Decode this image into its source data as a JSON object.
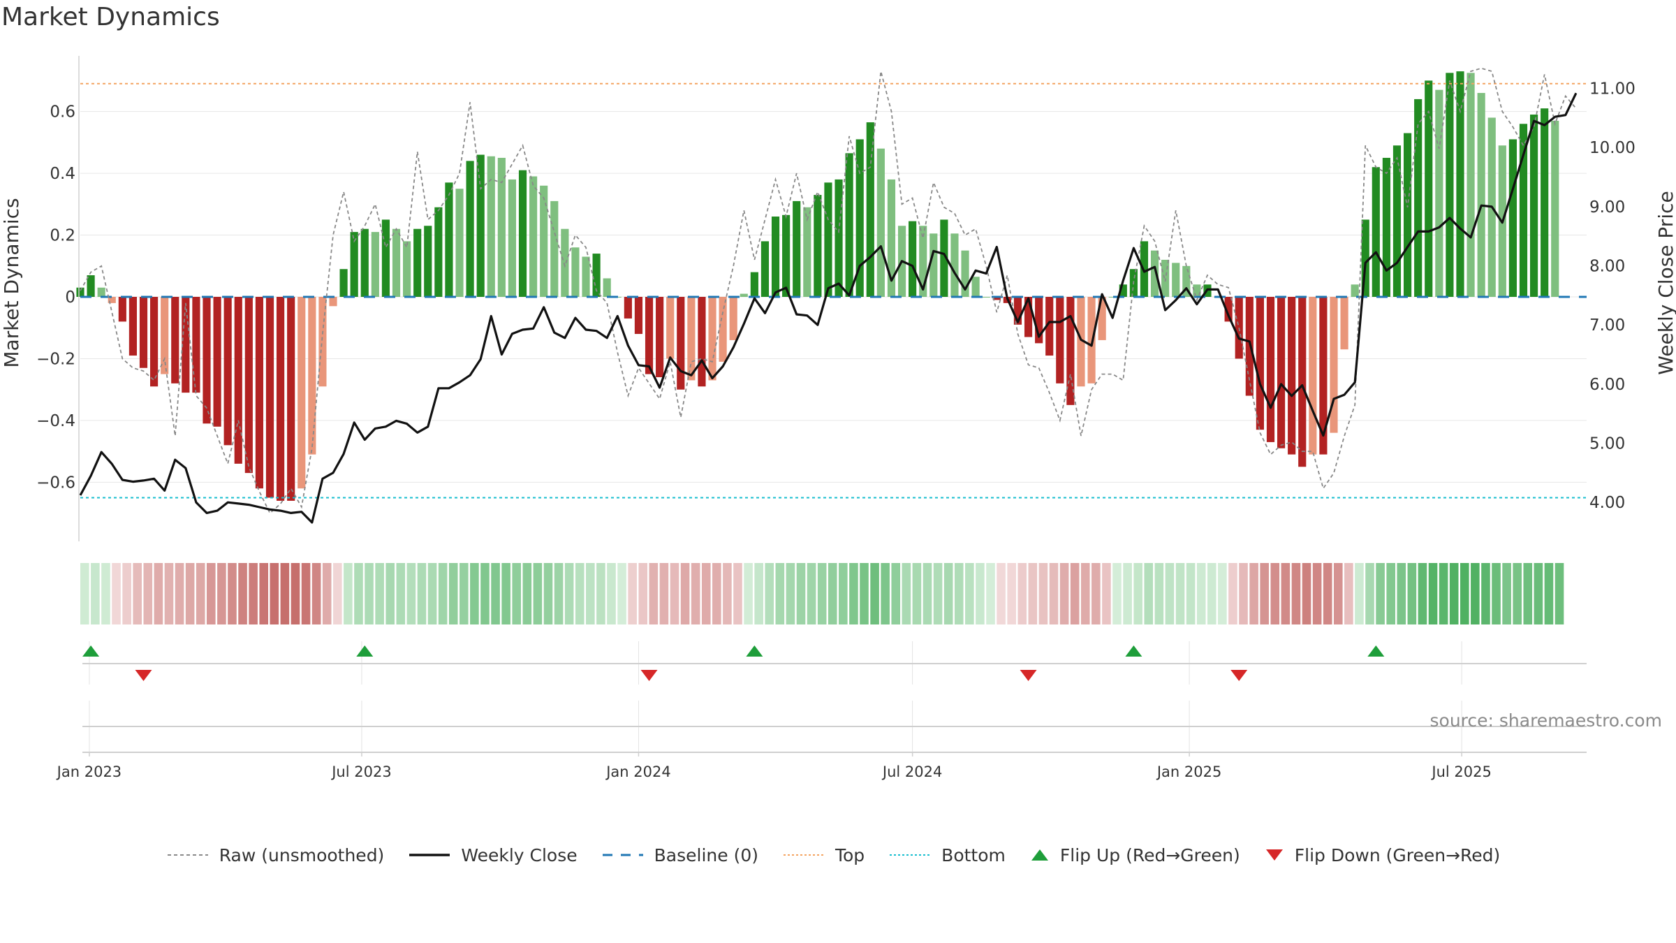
{
  "title": "Market Dynamics",
  "watermark": "source: sharemaestro.com",
  "legend": [
    {
      "label": "Raw (unsmoothed)",
      "kind": "dash-gray",
      "icon": "dashed-line"
    },
    {
      "label": "Weekly Close",
      "kind": "solid-black",
      "icon": "solid-line"
    },
    {
      "label": "Baseline (0)",
      "kind": "dash-blue",
      "icon": "long-dashed-line"
    },
    {
      "label": "Top",
      "kind": "dot-orange",
      "icon": "dotted-line"
    },
    {
      "label": "Bottom",
      "kind": "dot-cyan",
      "icon": "dotted-line"
    },
    {
      "label": "Flip Up (Red→Green)",
      "kind": "tri-up",
      "icon": "triangle-up-icon"
    },
    {
      "label": "Flip Down (Green→Red)",
      "kind": "tri-down",
      "icon": "triangle-down-icon"
    }
  ],
  "colors": {
    "green_strong": "#228B22",
    "green_light": "#7FBF7F",
    "red_strong": "#B22222",
    "red_light": "#E9967A",
    "weekly_close": "#111111",
    "raw": "#888888",
    "baseline": "#1F77B4",
    "top": "#F4A460",
    "bottom": "#17BECF",
    "flip_up": "#1E9E3A",
    "flip_down": "#D62728"
  },
  "chart_data": {
    "type": "bar",
    "title": "Market Dynamics",
    "ylabel": "Market Dynamics",
    "y2label": "Weekly Close Price",
    "ylim": [
      -0.78,
      0.78
    ],
    "y2lim": [
      3.4,
      11.55
    ],
    "yticks": [
      -0.6,
      -0.4,
      -0.2,
      0,
      0.2,
      0.4,
      0.6
    ],
    "ytick_labels": [
      "−0.6",
      "−0.4",
      "−0.2",
      "0",
      "0.2",
      "0.4",
      "0.6"
    ],
    "y2ticks": [
      4,
      5,
      6,
      7,
      8,
      9,
      10,
      11
    ],
    "y2tick_labels": [
      "4.00",
      "5.00",
      "6.00",
      "7.00",
      "8.00",
      "9.00",
      "10.00",
      "11.00"
    ],
    "x_start": "2022-12-26",
    "x_end": "2025-09-22",
    "x_ticks": [
      {
        "date": "2023-01-01",
        "label": "Jan 2023"
      },
      {
        "date": "2023-07-01",
        "label": "Jul 2023"
      },
      {
        "date": "2024-01-01",
        "label": "Jan 2024"
      },
      {
        "date": "2024-07-01",
        "label": "Jul 2024"
      },
      {
        "date": "2025-01-01",
        "label": "Jan 2025"
      },
      {
        "date": "2025-07-01",
        "label": "Jul 2025"
      }
    ],
    "top_level": 0.69,
    "bottom_level": -0.65,
    "baseline": 0,
    "grid": true,
    "legend_position": "bottom",
    "start_date": "2022-12-26",
    "week_step_days": 7,
    "momentum": [
      0.03,
      0.07,
      0.03,
      -0.02,
      -0.08,
      -0.19,
      -0.23,
      -0.29,
      -0.25,
      -0.28,
      -0.31,
      -0.31,
      -0.41,
      -0.42,
      -0.48,
      -0.54,
      -0.57,
      -0.62,
      -0.65,
      -0.66,
      -0.66,
      -0.62,
      -0.51,
      -0.29,
      -0.03,
      0.09,
      0.21,
      0.22,
      0.21,
      0.25,
      0.22,
      0.18,
      0.22,
      0.23,
      0.29,
      0.37,
      0.35,
      0.44,
      0.46,
      0.455,
      0.45,
      0.38,
      0.41,
      0.39,
      0.36,
      0.31,
      0.22,
      0.16,
      0.13,
      0.14,
      0.06,
      0.0,
      -0.07,
      -0.12,
      -0.25,
      -0.26,
      -0.2,
      -0.3,
      -0.27,
      -0.29,
      -0.27,
      -0.21,
      -0.14,
      0.01,
      0.08,
      0.18,
      0.26,
      0.265,
      0.31,
      0.29,
      0.33,
      0.37,
      0.38,
      0.465,
      0.51,
      0.565,
      0.48,
      0.38,
      0.23,
      0.245,
      0.23,
      0.205,
      0.25,
      0.205,
      0.15,
      0.065,
      0.0,
      -0.01,
      -0.02,
      -0.09,
      -0.13,
      -0.15,
      -0.19,
      -0.28,
      -0.35,
      -0.29,
      -0.28,
      -0.14,
      0.0,
      0.04,
      0.09,
      0.18,
      0.15,
      0.12,
      0.11,
      0.1,
      0.04,
      0.04,
      0.0,
      -0.08,
      -0.2,
      -0.32,
      -0.43,
      -0.47,
      -0.49,
      -0.51,
      -0.55,
      -0.51,
      -0.51,
      -0.44,
      -0.17,
      0.04,
      0.25,
      0.42,
      0.45,
      0.49,
      0.53,
      0.64,
      0.7,
      0.67,
      0.725,
      0.73,
      0.725,
      0.66,
      0.58,
      0.49,
      0.51,
      0.56,
      0.59,
      0.61,
      0.57
    ],
    "close": [
      4.12,
      4.45,
      4.85,
      4.65,
      4.38,
      4.35,
      4.37,
      4.4,
      4.2,
      4.72,
      4.58,
      4.0,
      3.82,
      3.86,
      4.0,
      3.98,
      3.96,
      3.92,
      3.88,
      3.86,
      3.82,
      3.84,
      3.66,
      4.4,
      4.5,
      4.82,
      5.35,
      5.06,
      5.25,
      5.28,
      5.38,
      5.33,
      5.18,
      5.28,
      5.93,
      5.93,
      6.03,
      6.15,
      6.42,
      7.15,
      6.5,
      6.85,
      6.92,
      6.94,
      7.3,
      6.87,
      6.78,
      7.12,
      6.92,
      6.9,
      6.78,
      7.15,
      6.65,
      6.32,
      6.3,
      5.94,
      6.45,
      6.22,
      6.15,
      6.4,
      6.1,
      6.3,
      6.62,
      7.02,
      7.45,
      7.2,
      7.55,
      7.63,
      7.18,
      7.16,
      7.0,
      7.62,
      7.7,
      7.5,
      8.0,
      8.15,
      8.33,
      7.75,
      8.08,
      8.0,
      7.6,
      8.25,
      8.2,
      7.88,
      7.6,
      7.92,
      7.87,
      8.32,
      7.45,
      7.05,
      7.45,
      6.8,
      7.05,
      7.05,
      7.15,
      6.75,
      6.65,
      7.52,
      7.12,
      7.75,
      8.3,
      7.9,
      7.98,
      7.25,
      7.42,
      7.62,
      7.35,
      7.6,
      7.6,
      7.16,
      6.77,
      6.72,
      6.0,
      5.6,
      6.0,
      5.8,
      5.98,
      5.55,
      5.13,
      5.75,
      5.82,
      6.03,
      8.05,
      8.23,
      7.92,
      8.05,
      8.32,
      8.58,
      8.58,
      8.65,
      8.81,
      8.63,
      8.48,
      9.02,
      9.0,
      8.73,
      9.3,
      9.88,
      10.45,
      10.38,
      10.52,
      10.55,
      10.92
    ],
    "raw": [
      0.02,
      0.08,
      0.1,
      -0.05,
      -0.2,
      -0.23,
      -0.24,
      -0.27,
      -0.2,
      -0.45,
      -0.02,
      -0.32,
      -0.36,
      -0.45,
      -0.54,
      -0.4,
      -0.55,
      -0.63,
      -0.7,
      -0.67,
      -0.62,
      -0.68,
      -0.49,
      -0.12,
      0.2,
      0.34,
      0.18,
      0.23,
      0.3,
      0.16,
      0.22,
      0.16,
      0.47,
      0.25,
      0.28,
      0.33,
      0.4,
      0.63,
      0.35,
      0.38,
      0.37,
      0.43,
      0.49,
      0.36,
      0.32,
      0.21,
      0.1,
      0.2,
      0.16,
      0.02,
      -0.02,
      -0.18,
      -0.32,
      -0.23,
      -0.28,
      -0.33,
      -0.21,
      -0.39,
      -0.21,
      -0.2,
      -0.21,
      -0.05,
      0.1,
      0.28,
      0.12,
      0.25,
      0.38,
      0.26,
      0.4,
      0.25,
      0.34,
      0.25,
      0.21,
      0.52,
      0.4,
      0.42,
      0.73,
      0.6,
      0.3,
      0.32,
      0.19,
      0.37,
      0.29,
      0.27,
      0.2,
      0.22,
      0.1,
      -0.05,
      0.07,
      -0.12,
      -0.22,
      -0.23,
      -0.31,
      -0.4,
      -0.25,
      -0.45,
      -0.3,
      -0.25,
      -0.25,
      -0.27,
      0.05,
      0.23,
      0.18,
      0.05,
      0.28,
      0.1,
      -0.01,
      0.07,
      0.04,
      0.03,
      -0.1,
      -0.27,
      -0.44,
      -0.51,
      -0.48,
      -0.47,
      -0.5,
      -0.5,
      -0.62,
      -0.57,
      -0.45,
      -0.35,
      0.49,
      0.42,
      0.4,
      0.45,
      0.29,
      0.56,
      0.6,
      0.48,
      0.7,
      0.6,
      0.73,
      0.74,
      0.73,
      0.6,
      0.55,
      0.49,
      0.55,
      0.72,
      0.56,
      0.65,
      0.61
    ],
    "flip_up_dates": [
      "2023-01-02",
      "2023-07-03",
      "2024-03-18",
      "2024-11-25",
      "2025-05-05"
    ],
    "flip_down_dates": [
      "2023-02-06",
      "2024-01-08",
      "2024-09-16",
      "2025-02-03"
    ]
  }
}
